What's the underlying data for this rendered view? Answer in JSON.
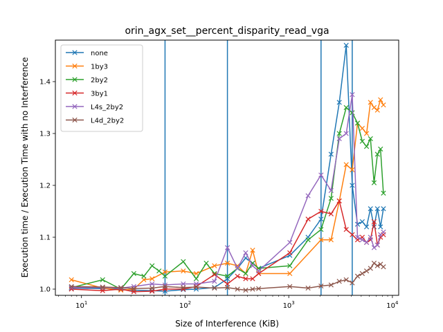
{
  "chart_data": {
    "type": "line",
    "title": "orin_agx_set__percent_disparity_read_vga",
    "xlabel": "Size of Interference (KiB)",
    "ylabel": "Execution time / Execution Time with no Interference",
    "xscale": "log",
    "xlim": [
      5.6,
      11500
    ],
    "ylim": [
      0.988,
      1.48
    ],
    "x_tick_labels": [
      {
        "value": 10,
        "label": "10^1"
      },
      {
        "value": 100,
        "label": "10^2"
      },
      {
        "value": 1000,
        "label": "10^3"
      },
      {
        "value": 10000,
        "label": "10^4"
      }
    ],
    "y_ticks": [
      1.0,
      1.1,
      1.2,
      1.3,
      1.4
    ],
    "y_tick_labels": [
      "1.0",
      "1.1",
      "1.2",
      "1.3",
      "1.4"
    ],
    "marker": "x",
    "grid": false,
    "legend_position": "top-left",
    "vertical_lines": {
      "color": "#1f77b4",
      "x": [
        64,
        256,
        2048,
        4096
      ]
    },
    "series": [
      {
        "name": "none",
        "color": "#1f77b4",
        "points": [
          [
            8,
            1.002
          ],
          [
            16,
            1.001
          ],
          [
            24,
            1.0
          ],
          [
            32,
            0.998
          ],
          [
            48,
            0.997
          ],
          [
            64,
            0.996
          ],
          [
            96,
            0.999
          ],
          [
            128,
            1.0
          ],
          [
            192,
            1.003
          ],
          [
            256,
            1.02
          ],
          [
            320,
            1.04
          ],
          [
            384,
            1.06
          ],
          [
            448,
            1.05
          ],
          [
            512,
            1.04
          ],
          [
            1024,
            1.065
          ],
          [
            1536,
            1.1
          ],
          [
            2048,
            1.135
          ],
          [
            2560,
            1.26
          ],
          [
            3072,
            1.36
          ],
          [
            3584,
            1.47
          ],
          [
            4096,
            1.2
          ],
          [
            4608,
            1.125
          ],
          [
            5120,
            1.13
          ],
          [
            5632,
            1.12
          ],
          [
            6144,
            1.155
          ],
          [
            6656,
            1.12
          ],
          [
            7168,
            1.155
          ],
          [
            7680,
            1.12
          ],
          [
            8192,
            1.155
          ]
        ]
      },
      {
        "name": "1by3",
        "color": "#ff7f0e",
        "points": [
          [
            8,
            1.018
          ],
          [
            16,
            1.002
          ],
          [
            24,
            0.998
          ],
          [
            32,
            1.0
          ],
          [
            40,
            1.018
          ],
          [
            48,
            1.02
          ],
          [
            64,
            1.033
          ],
          [
            96,
            1.035
          ],
          [
            128,
            1.03
          ],
          [
            192,
            1.045
          ],
          [
            256,
            1.05
          ],
          [
            320,
            1.045
          ],
          [
            384,
            1.03
          ],
          [
            448,
            1.075
          ],
          [
            512,
            1.03
          ],
          [
            1024,
            1.03
          ],
          [
            2048,
            1.095
          ],
          [
            2560,
            1.095
          ],
          [
            3072,
            1.17
          ],
          [
            3584,
            1.24
          ],
          [
            4096,
            1.23
          ],
          [
            4608,
            1.32
          ],
          [
            5120,
            1.31
          ],
          [
            5632,
            1.3
          ],
          [
            6144,
            1.36
          ],
          [
            6656,
            1.35
          ],
          [
            7168,
            1.345
          ],
          [
            7680,
            1.365
          ],
          [
            8192,
            1.355
          ]
        ]
      },
      {
        "name": "2by2",
        "color": "#2ca02c",
        "points": [
          [
            8,
            1.003
          ],
          [
            16,
            1.018
          ],
          [
            24,
            1.0
          ],
          [
            32,
            1.03
          ],
          [
            40,
            1.025
          ],
          [
            48,
            1.045
          ],
          [
            56,
            1.035
          ],
          [
            64,
            1.025
          ],
          [
            96,
            1.053
          ],
          [
            128,
            1.02
          ],
          [
            160,
            1.05
          ],
          [
            192,
            1.03
          ],
          [
            256,
            1.025
          ],
          [
            320,
            1.04
          ],
          [
            384,
            1.03
          ],
          [
            448,
            1.05
          ],
          [
            512,
            1.04
          ],
          [
            1024,
            1.045
          ],
          [
            1536,
            1.095
          ],
          [
            2048,
            1.115
          ],
          [
            2560,
            1.175
          ],
          [
            3072,
            1.3
          ],
          [
            3584,
            1.35
          ],
          [
            4096,
            1.34
          ],
          [
            4608,
            1.32
          ],
          [
            5120,
            1.285
          ],
          [
            5632,
            1.275
          ],
          [
            6144,
            1.29
          ],
          [
            6656,
            1.205
          ],
          [
            7168,
            1.26
          ],
          [
            7680,
            1.27
          ],
          [
            8192,
            1.185
          ]
        ]
      },
      {
        "name": "3by1",
        "color": "#d62728",
        "points": [
          [
            8,
            1.0
          ],
          [
            16,
            0.997
          ],
          [
            24,
            1.0
          ],
          [
            32,
            0.995
          ],
          [
            48,
            0.996
          ],
          [
            64,
            1.0
          ],
          [
            96,
            1.0
          ],
          [
            128,
            1.005
          ],
          [
            192,
            1.028
          ],
          [
            256,
            1.01
          ],
          [
            320,
            1.025
          ],
          [
            384,
            1.02
          ],
          [
            448,
            1.02
          ],
          [
            512,
            1.03
          ],
          [
            1024,
            1.07
          ],
          [
            1536,
            1.135
          ],
          [
            2048,
            1.15
          ],
          [
            2560,
            1.145
          ],
          [
            3072,
            1.17
          ],
          [
            3584,
            1.115
          ],
          [
            4096,
            1.105
          ],
          [
            4608,
            1.095
          ],
          [
            5120,
            1.1
          ],
          [
            5632,
            1.09
          ],
          [
            6144,
            1.095
          ],
          [
            6656,
            1.13
          ],
          [
            7168,
            1.085
          ],
          [
            7680,
            1.1
          ],
          [
            8192,
            1.105
          ]
        ]
      },
      {
        "name": "L4s_2by2",
        "color": "#9467bd",
        "points": [
          [
            8,
            1.003
          ],
          [
            16,
            1.003
          ],
          [
            24,
            1.002
          ],
          [
            32,
            1.005
          ],
          [
            48,
            1.01
          ],
          [
            64,
            1.008
          ],
          [
            96,
            1.01
          ],
          [
            128,
            1.01
          ],
          [
            192,
            1.015
          ],
          [
            256,
            1.08
          ],
          [
            320,
            1.04
          ],
          [
            384,
            1.07
          ],
          [
            448,
            1.045
          ],
          [
            512,
            1.035
          ],
          [
            1024,
            1.09
          ],
          [
            1536,
            1.18
          ],
          [
            2048,
            1.22
          ],
          [
            2560,
            1.19
          ],
          [
            3072,
            1.29
          ],
          [
            3584,
            1.3
          ],
          [
            4096,
            1.375
          ],
          [
            4608,
            1.1
          ],
          [
            5120,
            1.095
          ],
          [
            5632,
            1.09
          ],
          [
            6144,
            1.1
          ],
          [
            6656,
            1.08
          ],
          [
            7168,
            1.085
          ],
          [
            7680,
            1.105
          ],
          [
            8192,
            1.11
          ]
        ]
      },
      {
        "name": "L4d_2by2",
        "color": "#8c564b",
        "points": [
          [
            8,
            1.005
          ],
          [
            16,
            1.004
          ],
          [
            24,
            1.003
          ],
          [
            32,
            1.001
          ],
          [
            48,
            1.002
          ],
          [
            64,
            1.005
          ],
          [
            96,
            1.003
          ],
          [
            128,
            1.004
          ],
          [
            192,
            1.002
          ],
          [
            256,
            1.003
          ],
          [
            320,
            1.0
          ],
          [
            384,
            0.998
          ],
          [
            448,
            1.0
          ],
          [
            512,
            1.001
          ],
          [
            1024,
            1.005
          ],
          [
            1536,
            1.002
          ],
          [
            2048,
            1.006
          ],
          [
            2560,
            1.008
          ],
          [
            3072,
            1.015
          ],
          [
            3584,
            1.018
          ],
          [
            4096,
            1.012
          ],
          [
            4608,
            1.025
          ],
          [
            5120,
            1.03
          ],
          [
            5632,
            1.035
          ],
          [
            6144,
            1.04
          ],
          [
            6656,
            1.05
          ],
          [
            7168,
            1.045
          ],
          [
            7680,
            1.048
          ],
          [
            8192,
            1.043
          ]
        ]
      }
    ]
  }
}
